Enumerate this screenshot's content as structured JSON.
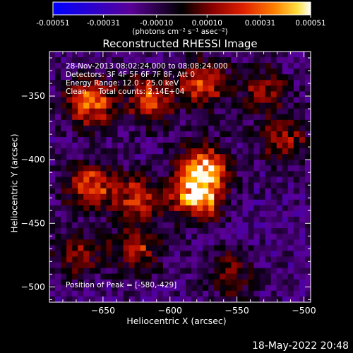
{
  "colorbar": {
    "tick_labels": [
      "-0.00051",
      "-0.00031",
      "-0.00010",
      "0.00010",
      "0.00031",
      "0.00051"
    ],
    "tick_values": [
      -0.00051,
      -0.00031,
      -0.0001,
      0.0001,
      0.00031,
      0.00051
    ],
    "range": [
      -0.00051,
      0.00051
    ],
    "colors": [
      "#0000ff",
      "#2a00c8",
      "#5a0096",
      "#000000",
      "#7a0000",
      "#d01800",
      "#ff7000",
      "#ffd000",
      "#ffffff"
    ],
    "unit_label": "(photons cm⁻² s⁻¹ asec⁻²)"
  },
  "chart_data": {
    "type": "heatmap",
    "title": "Reconstructed RHESSI Image",
    "xlabel": "Heliocentric X (arcsec)",
    "ylabel": "Heliocentric Y (arcsec)",
    "xlim": [
      -690,
      -495
    ],
    "ylim": [
      -512,
      -315
    ],
    "x_ticks": [
      -650,
      -600,
      -550,
      -500
    ],
    "y_ticks": [
      -350,
      -400,
      -450,
      -500
    ],
    "x_tick_labels": [
      "−650",
      "−600",
      "−550",
      "−500"
    ],
    "y_tick_labels": [
      "−350",
      "−400",
      "−450",
      "−500"
    ],
    "annotations": [
      "28-Nov-2013 08:02:24.000 to 08:08:24.000",
      "Detectors: 3F 4F 5F 6F 7F 8F, Att 0",
      "Energy Range: 12.0 - 25.0 keV",
      "Clean     Total counts: 2.14E+04"
    ],
    "peak_label": "Position of Peak = [-580,-429]",
    "peak_position": [
      -580,
      -429
    ],
    "peak_value": 0.00051,
    "sources": [
      {
        "x": -580,
        "y": -429,
        "value": 0.00051
      },
      {
        "x": -575,
        "y": -405,
        "value": 0.0004
      },
      {
        "x": -660,
        "y": -355,
        "value": 0.00042
      },
      {
        "x": -615,
        "y": -352,
        "value": 0.0003
      },
      {
        "x": -575,
        "y": -340,
        "value": 0.0003
      },
      {
        "x": -660,
        "y": -420,
        "value": 0.0003
      },
      {
        "x": -625,
        "y": -430,
        "value": 0.00028
      },
      {
        "x": -625,
        "y": -470,
        "value": 0.00022
      },
      {
        "x": -530,
        "y": -345,
        "value": 0.00015
      },
      {
        "x": -515,
        "y": -385,
        "value": 0.0002
      },
      {
        "x": -555,
        "y": -490,
        "value": 0.00012
      },
      {
        "x": -670,
        "y": -475,
        "value": 0.00014
      }
    ]
  },
  "footer": {
    "timestamp": "18-May-2022 20:48"
  }
}
